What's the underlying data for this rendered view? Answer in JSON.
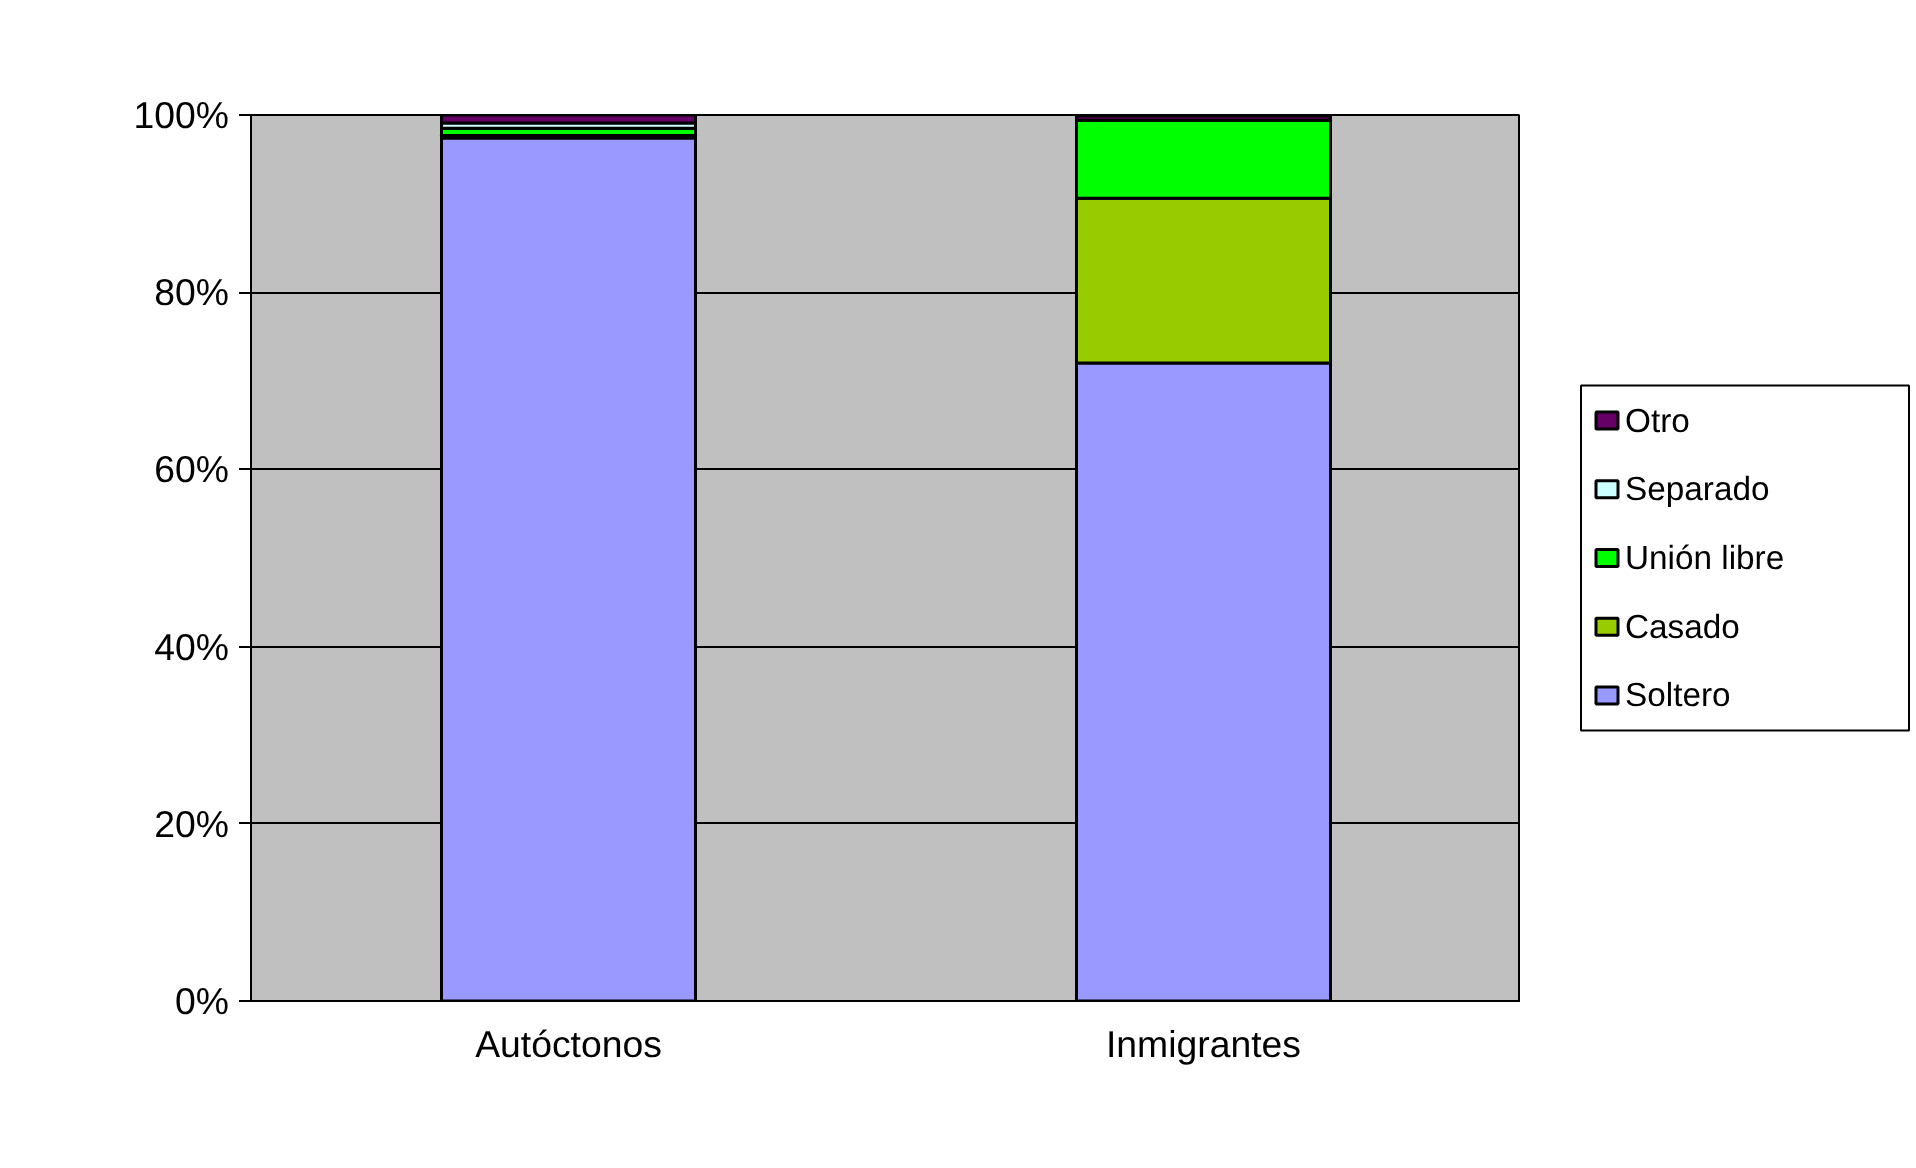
{
  "chart_data": {
    "type": "bar",
    "stacked": true,
    "categories": [
      "Autóctonos",
      "Inmigrantes"
    ],
    "series": [
      {
        "name": "Soltero",
        "color": "#9999ff",
        "values": [
          97.4,
          72.0
        ]
      },
      {
        "name": "Casado",
        "color": "#99cc00",
        "values": [
          0.3,
          18.6
        ]
      },
      {
        "name": "Unión libre",
        "color": "#00ff00",
        "values": [
          0.8,
          8.8
        ]
      },
      {
        "name": "Separado",
        "color": "#ccffff",
        "values": [
          0.6,
          null
        ]
      },
      {
        "name": "Otro",
        "color": "#660066",
        "values": [
          0.9,
          0.5
        ]
      }
    ],
    "ylim": [
      0,
      100
    ],
    "yticks": [
      {
        "value": 0,
        "label": "0%"
      },
      {
        "value": 20,
        "label": "20%"
      },
      {
        "value": 40,
        "label": "40%"
      },
      {
        "value": 60,
        "label": "60%"
      },
      {
        "value": 80,
        "label": "80%"
      },
      {
        "value": 100,
        "label": "100%"
      }
    ],
    "grid": "y",
    "legend": "right"
  }
}
